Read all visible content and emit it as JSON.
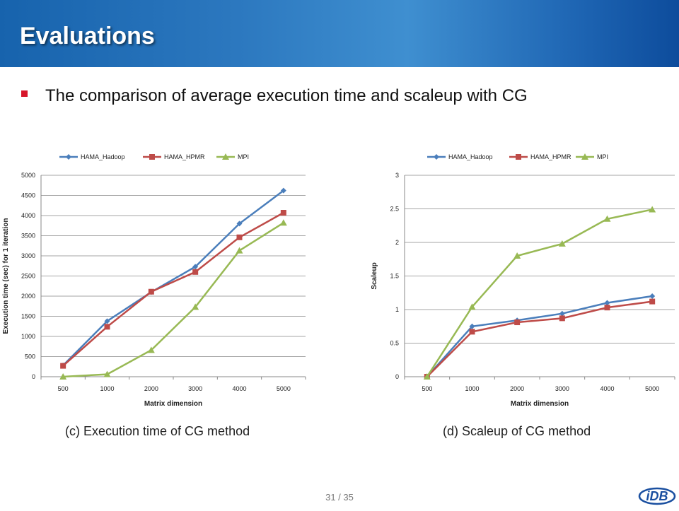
{
  "slide": {
    "title": "Evaluations",
    "bullet": "The comparison of average execution time and scaleup with CG",
    "page_number": "31 / 35",
    "logo_text": "iDB",
    "colors": {
      "header": "#2c78bf",
      "bullet": "#d7162a"
    }
  },
  "captions": [
    "(c) Execution time of CG method",
    "(d) Scaleup of CG method"
  ],
  "chart_data": [
    {
      "type": "line",
      "categories": [
        "500",
        "1000",
        "2000",
        "3000",
        "4000",
        "5000"
      ],
      "series": [
        {
          "name": "HAMA_Hadoop",
          "color": "#4a7ebb",
          "marker": "diamond",
          "values": [
            280,
            1380,
            2100,
            2730,
            3800,
            4620
          ]
        },
        {
          "name": "HAMA_HPMR",
          "color": "#be4b48",
          "marker": "square",
          "values": [
            270,
            1240,
            2110,
            2600,
            3460,
            4070
          ]
        },
        {
          "name": "MPI",
          "color": "#98b954",
          "marker": "triangle",
          "values": [
            0,
            60,
            660,
            1730,
            3130,
            3820
          ]
        }
      ],
      "xlabel": "Matrix dimension",
      "ylabel": "Execution time (sec) for 1 iteration",
      "yticks": [
        "0",
        "500",
        "1000",
        "1500",
        "2000",
        "2500",
        "3000",
        "3500",
        "4000",
        "4500",
        "5000"
      ],
      "ylim": [
        0,
        5000
      ],
      "grid": true,
      "legend": "top"
    },
    {
      "type": "line",
      "categories": [
        "500",
        "1000",
        "2000",
        "3000",
        "4000",
        "5000"
      ],
      "series": [
        {
          "name": "HAMA_Hadoop",
          "color": "#4a7ebb",
          "marker": "diamond",
          "values": [
            0,
            0.75,
            0.84,
            0.94,
            1.1,
            1.2
          ]
        },
        {
          "name": "HAMA_HPMR",
          "color": "#be4b48",
          "marker": "square",
          "values": [
            0,
            0.67,
            0.81,
            0.87,
            1.03,
            1.12
          ]
        },
        {
          "name": "MPI",
          "color": "#98b954",
          "marker": "triangle",
          "values": [
            0,
            1.04,
            1.8,
            1.98,
            2.35,
            2.49
          ]
        }
      ],
      "xlabel": "Matrix dimension",
      "ylabel": "Scaleup",
      "yticks": [
        "0",
        "0.5",
        "1",
        "1.5",
        "2",
        "2.5",
        "3"
      ],
      "ylim": [
        0,
        3
      ],
      "grid": true,
      "legend": "top"
    }
  ]
}
